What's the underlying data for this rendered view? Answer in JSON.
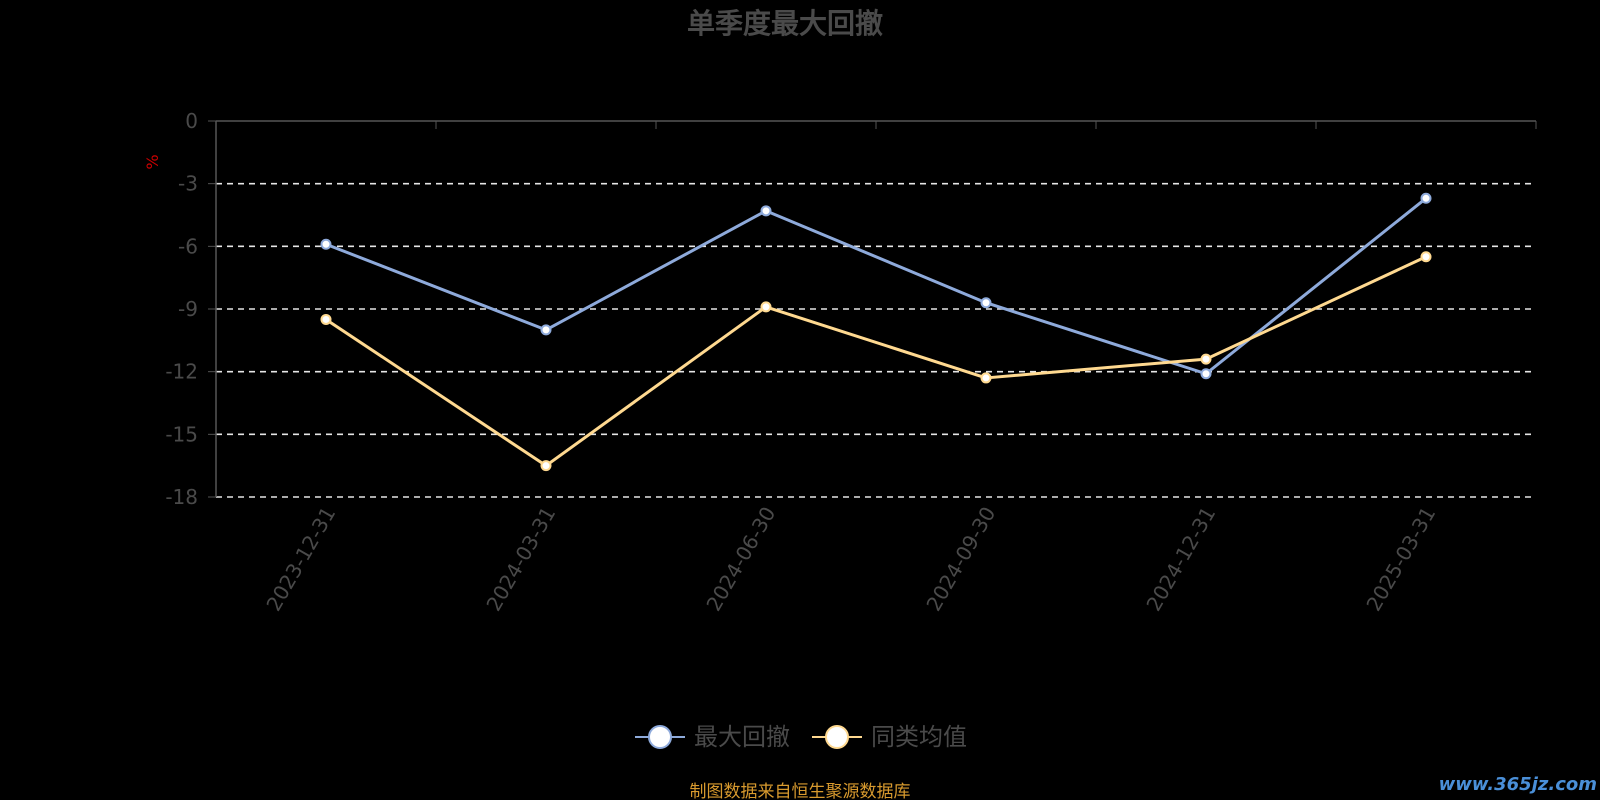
{
  "chart_data": {
    "type": "line",
    "title": "单季度最大回撤",
    "unit_label": "%",
    "categories": [
      "2023-12-31",
      "2024-03-31",
      "2024-06-30",
      "2024-09-30",
      "2024-12-31",
      "2025-03-31"
    ],
    "series": [
      {
        "name": "最大回撤",
        "values": [
          -5.9,
          -10.0,
          -4.3,
          -8.7,
          -12.1,
          -3.7
        ],
        "color": "#8eaadb"
      },
      {
        "name": "同类均值",
        "values": [
          -9.5,
          -16.5,
          -8.9,
          -12.3,
          -11.4,
          -6.5
        ],
        "color": "#ffd990"
      }
    ],
    "yticks": [
      0,
      -3,
      -6,
      -9,
      -12,
      -15,
      -18
    ],
    "ylim": [
      -18,
      0
    ],
    "grid": true,
    "grid_style": "dashed",
    "legend_position": "bottom-center"
  },
  "footer": {
    "source": "制图数据来自恒生聚源数据库"
  },
  "watermark": {
    "text": "www.365jz.com"
  }
}
